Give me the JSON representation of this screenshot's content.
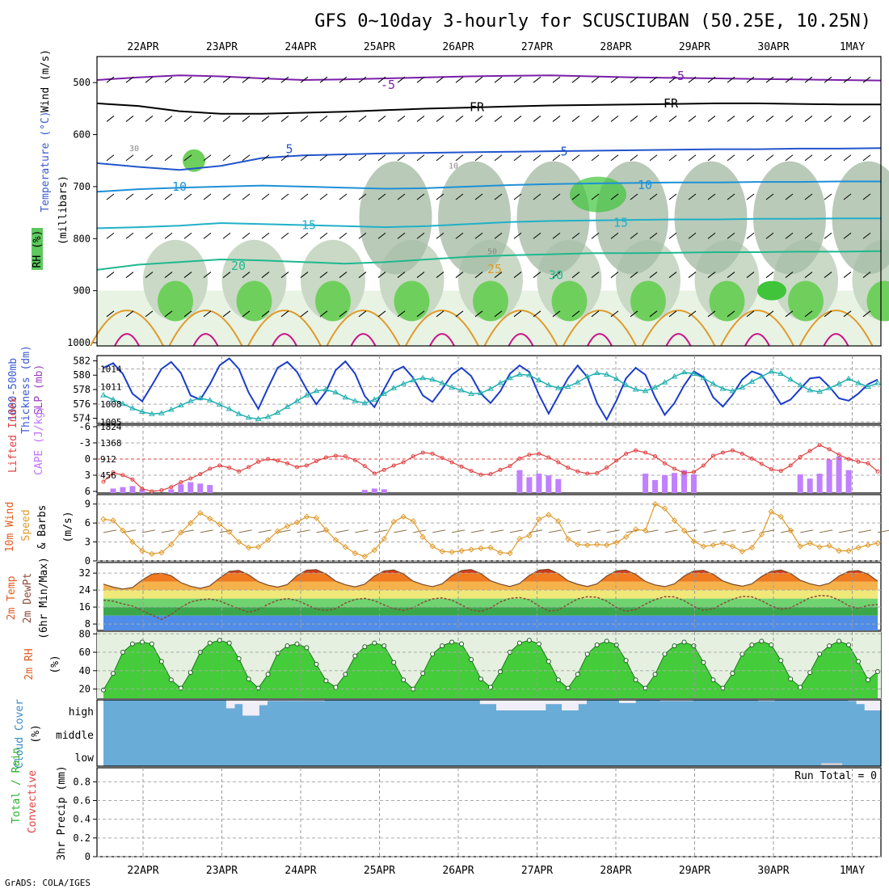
{
  "title": "GFS 0~10day 3-hourly for SCUSCIUBAN (50.25E, 10.25N)",
  "credit": "GrADS: COLA/IGES",
  "dates": [
    "22APR",
    "23APR",
    "24APR",
    "25APR",
    "26APR",
    "27APR",
    "28APR",
    "29APR",
    "30APR",
    "1MAY"
  ],
  "colors": {
    "rh_fill": [
      "#e8f3e4",
      "#c9d9c6",
      "#a8bda6",
      "#6fcf5c",
      "#3fc43a"
    ],
    "temp_lines": [
      "#7a1fa8",
      "#000000",
      "#2255cc",
      "#1e90d6",
      "#20b0c8",
      "#1fb88f",
      "#e09a2a",
      "#cc1188"
    ],
    "slp": "#1a3ccc",
    "thickness": "#22b0b0",
    "lifted": "#e04040",
    "cape": "#c080ff",
    "wind_speed": "#e09a2a",
    "cloud": "#6aacd8",
    "cloud_clear": "#f0eef8"
  },
  "chart_data": [
    {
      "panel": "vertical-profile",
      "type": "contour",
      "ylabels": [
        "Wind (m/s)",
        "Temperature (°C)",
        "(millibars)",
        "RH (%)"
      ],
      "yticks": [
        500,
        600,
        700,
        800,
        900,
        1000
      ],
      "ylim": [
        1000,
        450
      ],
      "isotherm_labels": [
        "-5",
        "FR",
        "5",
        "10",
        "15",
        "20",
        "25",
        "30"
      ],
      "rh_labels": [
        "10",
        "30",
        "50"
      ],
      "isotherms": [
        {
          "label": "-5",
          "p": [
            495,
            490,
            486,
            488,
            492,
            495,
            494,
            492,
            490,
            488,
            487,
            486,
            488,
            490,
            491,
            492,
            493,
            494,
            495,
            496
          ]
        },
        {
          "label": "FR",
          "p": [
            540,
            545,
            555,
            560,
            560,
            558,
            556,
            553,
            550,
            548,
            546,
            544,
            543,
            542,
            541,
            540,
            540,
            541,
            542,
            542
          ]
        },
        {
          "label": "5",
          "p": [
            655,
            662,
            668,
            660,
            645,
            640,
            638,
            636,
            635,
            634,
            633,
            632,
            631,
            630,
            629,
            628,
            628,
            627,
            627,
            626
          ]
        },
        {
          "label": "10",
          "p": [
            710,
            705,
            702,
            700,
            698,
            700,
            702,
            704,
            703,
            700,
            697,
            695,
            694,
            693,
            692,
            692,
            691,
            691,
            690,
            690
          ]
        },
        {
          "label": "15",
          "p": [
            780,
            778,
            775,
            770,
            772,
            774,
            776,
            778,
            776,
            772,
            768,
            766,
            765,
            764,
            763,
            763,
            762,
            762,
            761,
            761
          ]
        },
        {
          "label": "20",
          "p": [
            860,
            850,
            845,
            840,
            842,
            845,
            848,
            845,
            840,
            835,
            832,
            830,
            828,
            828,
            827,
            826,
            826,
            825,
            825,
            824
          ]
        }
      ]
    },
    {
      "panel": "slp-thickness",
      "type": "line",
      "ylabels": [
        "1000-500mb",
        "Thickness (dm)",
        "SLP (mb)"
      ],
      "left_ticks": [
        574,
        576,
        578,
        580,
        582
      ],
      "right_ticks": [
        1005,
        1008,
        1011,
        1014
      ],
      "slp_range": [
        1005,
        1016
      ],
      "thickness_range": [
        573.5,
        582.5
      ],
      "slp": [
        1014.2,
        1015.0,
        1013.2,
        1009.8,
        1008.5,
        1011.2,
        1014.0,
        1015.2,
        1013.3,
        1009.5,
        1008.8,
        1011.4,
        1014.6,
        1015.8,
        1014.0,
        1010.0,
        1007.2,
        1010.8,
        1014.2,
        1015.2,
        1013.5,
        1010.5,
        1008.0,
        1010.2,
        1013.8,
        1015.3,
        1013.2,
        1009.4,
        1007.5,
        1010.6,
        1013.6,
        1014.4,
        1012.5,
        1009.5,
        1008.4,
        1010.6,
        1013.0,
        1014.2,
        1012.8,
        1009.8,
        1008.2,
        1010.2,
        1013.2,
        1014.6,
        1013.5,
        1009.6,
        1006.4,
        1009.4,
        1012.4,
        1014.6,
        1012.6,
        1008.2,
        1005.4,
        1008.6,
        1012.4,
        1014.2,
        1013.0,
        1009.2,
        1006.2,
        1008.2,
        1011.2,
        1013.6,
        1012.6,
        1009.2,
        1007.6,
        1009.6,
        1012.2,
        1013.6,
        1013.0,
        1010.6,
        1008.0,
        1008.8,
        1010.6,
        1012.4,
        1012.6,
        1011.0,
        1009.0,
        1008.6,
        1009.8,
        1011.4,
        1012.2
      ],
      "thickness": [
        577.2,
        576.6,
        576.0,
        575.4,
        574.9,
        574.6,
        574.7,
        575.2,
        575.8,
        576.4,
        576.8,
        576.5,
        575.9,
        575.3,
        574.6,
        574.1,
        573.9,
        574.2,
        574.8,
        575.6,
        576.4,
        577.2,
        577.8,
        578.0,
        577.6,
        576.9,
        576.4,
        576.1,
        576.6,
        577.4,
        578.2,
        578.8,
        579.3,
        579.6,
        579.4,
        578.9,
        578.3,
        577.9,
        577.4,
        577.5,
        578.1,
        578.9,
        579.6,
        580.1,
        580.0,
        579.3,
        578.6,
        578.2,
        578.4,
        579.0,
        579.8,
        580.3,
        580.1,
        579.5,
        578.6,
        578.0,
        577.8,
        578.3,
        579.0,
        579.8,
        580.4,
        580.2,
        579.6,
        578.8,
        578.1,
        577.8,
        578.3,
        579.1,
        579.8,
        580.5,
        580.2,
        579.4,
        578.6,
        577.9,
        577.7,
        578.2,
        578.8,
        579.5,
        578.9,
        578.4,
        578.9
      ]
    },
    {
      "panel": "lifted-cape",
      "type": "line+bar",
      "ylabels": [
        "Lifted Index",
        "CAPE (J/kg)"
      ],
      "left_ticks": [
        -6,
        -3,
        0,
        3,
        6
      ],
      "right_ticks": [
        456,
        912,
        1368,
        1824
      ],
      "lifted_range": [
        6,
        -6
      ],
      "cape_range": [
        0,
        1824
      ],
      "lifted": [
        4.2,
        2.5,
        3.0,
        3.8,
        5.5,
        6.0,
        5.8,
        5.2,
        4.3,
        3.6,
        2.8,
        1.8,
        1.2,
        1.6,
        2.3,
        1.5,
        0.5,
        0.0,
        0.3,
        0.8,
        1.5,
        1.2,
        0.4,
        -0.3,
        -0.6,
        -0.5,
        0.2,
        1.3,
        2.7,
        2.0,
        1.2,
        0.6,
        -0.5,
        -1.2,
        -1.0,
        -0.2,
        0.6,
        1.4,
        2.2,
        2.9,
        2.8,
        2.0,
        1.3,
        -0.1,
        -0.8,
        -1.0,
        -0.3,
        0.6,
        1.6,
        2.3,
        2.7,
        2.6,
        1.6,
        0.3,
        -1.0,
        -1.6,
        -1.2,
        -0.5,
        0.8,
        1.8,
        2.6,
        2.4,
        1.2,
        -0.6,
        -1.2,
        -1.6,
        -1.0,
        -0.1,
        0.9,
        1.9,
        2.2,
        1.2,
        -0.4,
        -1.5,
        -2.6,
        -1.8,
        -0.8,
        0.0,
        0.5,
        0.8,
        2.3
      ],
      "cape": [
        0,
        80,
        120,
        150,
        60,
        0,
        0,
        60,
        200,
        260,
        220,
        180,
        0,
        0,
        0,
        0,
        0,
        0,
        0,
        0,
        0,
        0,
        0,
        0,
        0,
        0,
        0,
        40,
        80,
        60,
        0,
        0,
        0,
        0,
        0,
        0,
        0,
        0,
        0,
        0,
        0,
        0,
        0,
        600,
        400,
        500,
        450,
        350,
        0,
        0,
        0,
        0,
        0,
        0,
        0,
        0,
        500,
        320,
        460,
        520,
        600,
        480,
        0,
        0,
        0,
        0,
        0,
        0,
        0,
        0,
        0,
        0,
        480,
        360,
        500,
        900,
        980,
        600,
        0,
        0,
        0
      ]
    },
    {
      "panel": "wind-10m",
      "type": "line",
      "ylabels": [
        "10m Wind",
        "Speed",
        "& Barbs",
        "(m/s)"
      ],
      "ticks": [
        0,
        3,
        6,
        9
      ],
      "ylim": [
        0,
        10.5
      ],
      "speed": [
        6.6,
        6.4,
        4.8,
        3.0,
        1.6,
        1.1,
        1.3,
        2.6,
        4.5,
        6.0,
        7.6,
        6.7,
        5.8,
        4.6,
        3.0,
        2.1,
        2.2,
        3.3,
        4.7,
        5.5,
        6.1,
        7.0,
        6.8,
        4.9,
        3.3,
        2.2,
        1.2,
        0.7,
        1.7,
        3.5,
        6.2,
        7.0,
        6.3,
        3.8,
        2.3,
        1.5,
        1.4,
        1.6,
        1.8,
        2.0,
        2.1,
        1.3,
        1.2,
        3.5,
        4.0,
        6.6,
        7.3,
        6.3,
        3.5,
        2.6,
        2.5,
        2.6,
        2.5,
        2.9,
        3.8,
        5.0,
        4.8,
        9.0,
        8.3,
        6.4,
        4.8,
        3.1,
        2.3,
        2.5,
        2.8,
        2.3,
        1.5,
        2.1,
        4.2,
        7.8,
        7.0,
        4.8,
        2.3,
        2.8,
        2.2,
        2.4,
        1.6,
        1.6,
        2.1,
        2.5,
        2.8
      ]
    },
    {
      "panel": "temp-2m",
      "type": "area+line",
      "ylabels": [
        "2m Temp",
        "2m DewPt",
        "(6hr Min/Max)"
      ],
      "ticks": [
        8,
        16,
        24,
        32
      ],
      "ylim": [
        5,
        37
      ],
      "temp": [
        26.8,
        25.4,
        24.5,
        25.2,
        28.7,
        31.5,
        32.0,
        30.8,
        27.5,
        25.8,
        24.8,
        26.0,
        29.7,
        32.8,
        33.3,
        31.2,
        28.0,
        26.3,
        25.4,
        26.6,
        30.8,
        33.4,
        33.6,
        31.6,
        28.2,
        26.5,
        25.5,
        26.8,
        30.6,
        33.0,
        33.5,
        31.6,
        28.2,
        26.6,
        25.6,
        26.9,
        30.8,
        33.2,
        33.7,
        31.8,
        28.4,
        26.8,
        25.7,
        27.1,
        30.9,
        33.4,
        33.8,
        31.8,
        28.4,
        26.7,
        25.7,
        26.9,
        30.6,
        33.1,
        33.4,
        31.4,
        28.1,
        26.4,
        25.6,
        26.9,
        30.6,
        33.0,
        33.3,
        31.5,
        28.3,
        26.7,
        25.8,
        26.9,
        30.4,
        32.8,
        33.5,
        31.9,
        28.6,
        27.0,
        26.0,
        27.2,
        30.6,
        32.8,
        33.2,
        31.5,
        28.2
      ],
      "dewpt": [
        19.2,
        18.8,
        17.5,
        16.5,
        14.4,
        12.2,
        10.2,
        12.5,
        15.8,
        18.4,
        19.4,
        19.8,
        18.9,
        17.0,
        15.2,
        13.5,
        14.8,
        17.3,
        19.2,
        20.0,
        19.1,
        17.1,
        15.0,
        14.4,
        15.2,
        17.9,
        19.6,
        20.1,
        19.0,
        17.0,
        15.2,
        14.4,
        15.6,
        18.2,
        19.8,
        20.3,
        19.2,
        17.0,
        14.6,
        13.9,
        15.6,
        18.4,
        20.1,
        20.5,
        19.4,
        16.5,
        14.1,
        14.6,
        17.3,
        19.8,
        20.9,
        20.6,
        18.8,
        15.8,
        14.0,
        14.8,
        17.4,
        19.5,
        20.9,
        20.8,
        19.0,
        16.3,
        14.4,
        15.2,
        17.6,
        19.7,
        21.0,
        20.8,
        19.0,
        16.5,
        15.0,
        15.6,
        18.0,
        20.4,
        21.4,
        21.2,
        19.3,
        16.6,
        15.4,
        16.8,
        17.2
      ]
    },
    {
      "panel": "rh-2m",
      "type": "area",
      "ylabels": [
        "2m RH",
        "(%)"
      ],
      "ticks": [
        20,
        40,
        60,
        80
      ],
      "ylim": [
        10,
        82
      ],
      "rh": [
        19,
        37,
        60,
        69,
        71,
        69,
        50,
        30,
        21,
        38,
        60,
        70,
        73,
        70,
        53,
        31,
        21,
        36,
        59,
        67,
        69,
        65,
        47,
        29,
        22,
        36,
        56,
        66,
        70,
        67,
        49,
        30,
        20,
        37,
        58,
        67,
        71,
        69,
        52,
        31,
        22,
        39,
        60,
        70,
        73,
        69,
        50,
        30,
        21,
        36,
        58,
        68,
        72,
        68,
        51,
        30,
        21,
        36,
        58,
        67,
        71,
        67,
        49,
        30,
        21,
        37,
        58,
        68,
        72,
        68,
        51,
        31,
        22,
        38,
        58,
        67,
        72,
        68,
        50,
        30,
        39
      ]
    },
    {
      "panel": "cloud-cover",
      "type": "heatmap",
      "ylabels": [
        "Cloud Cover",
        "(%)"
      ],
      "levels": [
        "high",
        "middle",
        "low"
      ],
      "high": [
        0,
        0,
        0,
        0,
        0,
        0,
        0,
        0,
        0,
        0,
        0,
        0,
        0,
        0,
        0.02,
        0.4,
        0.2,
        0.75,
        0.75,
        0.25,
        0.05,
        0.05,
        0.05,
        0.05,
        0.05,
        0.05,
        0.05,
        0,
        0,
        0,
        0,
        0,
        0,
        0,
        0,
        0,
        0.02,
        0,
        0,
        0,
        0,
        0,
        0,
        0,
        0,
        0,
        0.2,
        0.2,
        0.5,
        0.5,
        0.5,
        0.5,
        0.5,
        0.5,
        0.2,
        0.2,
        0.5,
        0.5,
        0.2,
        0,
        0,
        0,
        0,
        0.15,
        0.15,
        0,
        0,
        0,
        0.05,
        0.05,
        0.05,
        0.05,
        0,
        0,
        0,
        0,
        0,
        0,
        0,
        0,
        0.05,
        0.05,
        0.02,
        0.02,
        0,
        0,
        0,
        0,
        0,
        0,
        0.02,
        0.05,
        0.2,
        0.5,
        0.5
      ],
      "low": [
        0,
        0,
        0,
        0,
        0,
        0,
        0,
        0,
        0,
        0,
        0,
        0,
        0,
        0,
        0,
        0,
        0,
        0,
        0,
        0,
        0,
        0,
        0,
        0,
        0,
        0,
        0,
        0,
        0,
        0,
        0,
        0,
        0,
        0,
        0,
        0,
        0,
        0,
        0,
        0,
        0,
        0,
        0,
        0,
        0,
        0,
        0,
        0,
        0,
        0,
        0,
        0,
        0,
        0,
        0,
        0,
        0,
        0,
        0,
        0,
        0,
        0,
        0,
        0,
        0,
        0,
        0,
        0,
        0,
        0,
        0,
        0,
        0,
        0,
        0,
        0.3,
        0,
        0,
        0,
        0,
        0
      ]
    },
    {
      "panel": "precip-3hr",
      "type": "bar",
      "ylabels": [
        "Total / Rain",
        "Convective",
        "3hr Precip (mm)"
      ],
      "ticks": [
        "0",
        "0.2",
        "0.4",
        "0.6",
        "0.8"
      ],
      "ylim": [
        0,
        0.95
      ],
      "run_total_label": "Run Total = 0",
      "values": []
    }
  ]
}
